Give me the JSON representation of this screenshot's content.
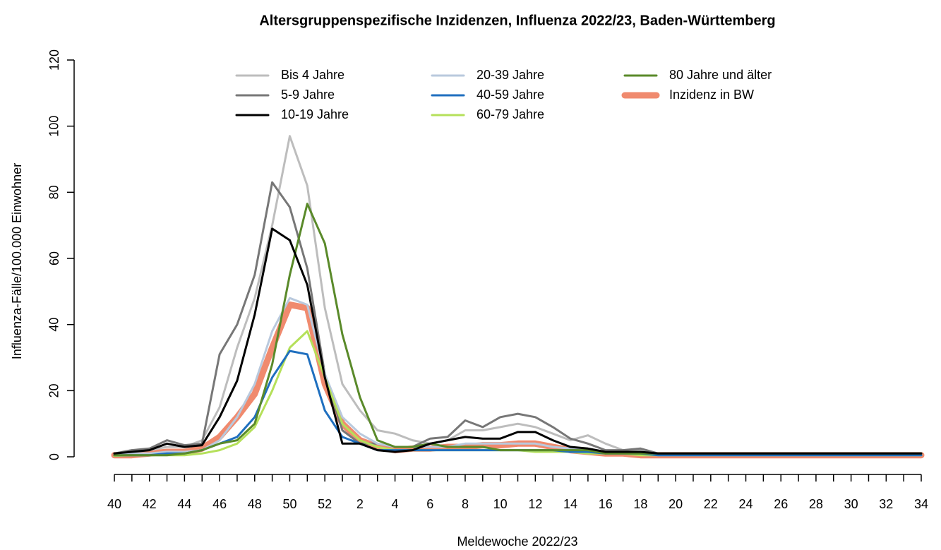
{
  "chart_data": {
    "type": "line",
    "title": "Altersgruppenspezifische Inzidenzen, Influenza 2022/23, Baden-Württemberg",
    "x_label": "Meldewoche 2022/23",
    "y_label": "Influenza-Fälle/100.000 Einwohner",
    "categories": [
      "40",
      null,
      "42",
      null,
      "44",
      null,
      "46",
      null,
      "48",
      null,
      "50",
      null,
      "52",
      null,
      "2",
      null,
      "4",
      null,
      "6",
      null,
      "8",
      null,
      "10",
      null,
      "12",
      null,
      "14",
      null,
      "16",
      null,
      "18",
      null,
      "20",
      null,
      "22",
      null,
      "24",
      null,
      "26",
      null,
      "28",
      null,
      "30",
      null,
      "32",
      null,
      "34"
    ],
    "ylim": [
      0,
      120
    ],
    "yticks": [
      0,
      20,
      40,
      60,
      80,
      100,
      120
    ],
    "grid": false,
    "series": [
      {
        "name": "Bis 4 Jahre",
        "color": "#bdbdbd",
        "width": 3,
        "values": [
          1,
          2,
          2,
          3,
          3,
          5,
          15,
          33,
          48,
          70,
          97,
          82,
          45,
          22,
          14,
          8,
          7,
          5,
          4,
          5,
          8,
          8,
          9,
          10,
          9,
          7,
          5,
          6.5,
          4,
          2,
          2,
          1,
          1,
          1,
          1,
          1,
          1,
          1,
          1,
          1,
          1,
          1,
          1,
          1,
          1,
          1,
          1
        ]
      },
      {
        "name": "5-9 Jahre",
        "color": "#777777",
        "width": 3,
        "values": [
          1,
          2,
          2.5,
          5,
          3.5,
          4,
          31,
          40,
          55,
          83,
          75.5,
          57,
          25,
          8,
          4,
          4,
          3,
          3,
          5.5,
          6,
          11,
          9,
          12,
          13,
          12,
          9,
          5.5,
          4,
          2,
          2,
          2.5,
          1,
          1,
          1,
          1,
          1,
          1,
          1,
          1,
          1,
          1,
          1,
          1,
          1,
          1,
          1,
          1
        ]
      },
      {
        "name": "10-19 Jahre",
        "color": "#000000",
        "width": 3,
        "values": [
          1,
          1.5,
          2,
          4,
          3,
          3.5,
          12,
          23,
          43,
          69,
          65.5,
          52,
          24,
          4,
          4,
          2,
          1.5,
          2,
          4,
          5,
          6,
          5.5,
          5.5,
          7.5,
          7.5,
          5,
          3,
          2.5,
          1.5,
          1.5,
          1.5,
          1,
          1,
          1,
          1,
          1,
          1,
          1,
          1,
          1,
          1,
          1,
          1,
          1,
          1,
          1,
          1
        ]
      },
      {
        "name": "20-39 Jahre",
        "color": "#b9c9dd",
        "width": 3,
        "values": [
          0.5,
          1,
          1,
          1.5,
          1.5,
          2,
          5,
          12,
          22,
          38,
          48,
          46,
          25,
          12,
          7,
          4,
          3,
          3,
          3,
          3,
          4,
          4,
          4,
          4,
          4,
          3,
          2.5,
          2,
          1.5,
          1,
          1,
          0.5,
          0.5,
          0.5,
          0.5,
          0.5,
          0.5,
          0.5,
          0.5,
          0.5,
          0.5,
          0.5,
          0.5,
          0.5,
          0.5,
          0.5,
          0.5
        ]
      },
      {
        "name": "40-59 Jahre",
        "color": "#1f6fbf",
        "width": 3,
        "values": [
          0.5,
          0.5,
          0.5,
          1,
          1,
          2,
          4,
          6,
          12,
          24,
          32,
          31,
          14,
          6,
          4,
          2,
          2,
          2,
          2,
          2,
          2,
          2,
          2,
          2,
          2,
          2,
          1.5,
          1.5,
          1,
          1,
          1,
          0.5,
          0.5,
          0.5,
          0.5,
          0.5,
          0.5,
          0.5,
          0.5,
          0.5,
          0.5,
          0.5,
          0.5,
          0.5,
          0.5,
          0.5,
          0.5
        ]
      },
      {
        "name": "60-79 Jahre",
        "color": "#b5e05a",
        "width": 3,
        "values": [
          0.3,
          0.5,
          0.5,
          0.5,
          0.5,
          1,
          2,
          4,
          9,
          20,
          33,
          38,
          24,
          10,
          5,
          3,
          2,
          2,
          2,
          2,
          2,
          2,
          2,
          2,
          1.5,
          1.5,
          1.5,
          1,
          1,
          1,
          0.5,
          0.5,
          0.5,
          0.5,
          0.5,
          0.5,
          0.5,
          0.5,
          0.5,
          0.5,
          0.5,
          0.5,
          0.5,
          0.5,
          0.5,
          0.5,
          0.5
        ]
      },
      {
        "name": "80 Jahre und älter",
        "color": "#5a8a2a",
        "width": 3,
        "values": [
          0.5,
          0.5,
          0.5,
          0.5,
          1,
          2,
          4,
          5,
          10,
          28,
          55,
          76.5,
          64.5,
          37,
          18,
          5,
          3,
          3,
          4,
          3,
          3,
          3,
          2,
          2,
          2,
          2,
          2,
          2,
          1,
          1,
          1,
          1,
          1,
          1,
          1,
          1,
          1,
          1,
          1,
          1,
          1,
          1,
          1,
          1,
          1,
          1,
          1
        ]
      },
      {
        "name": "Inzidenz in BW",
        "color": "#f08a6e",
        "width": 9,
        "values": [
          0.5,
          0.5,
          1,
          1.5,
          1.5,
          2.5,
          6,
          12,
          19,
          33,
          46,
          45,
          22,
          10,
          5,
          3,
          2,
          2.5,
          2.5,
          3,
          3,
          3.5,
          3.5,
          4,
          4,
          3,
          2,
          1.5,
          1,
          1,
          0.5,
          0.5,
          0.5,
          0.5,
          0.5,
          0.5,
          0.5,
          0.5,
          0.5,
          0.5,
          0.5,
          0.5,
          0.5,
          0.5,
          0.5,
          0.5,
          0.5
        ]
      }
    ]
  }
}
